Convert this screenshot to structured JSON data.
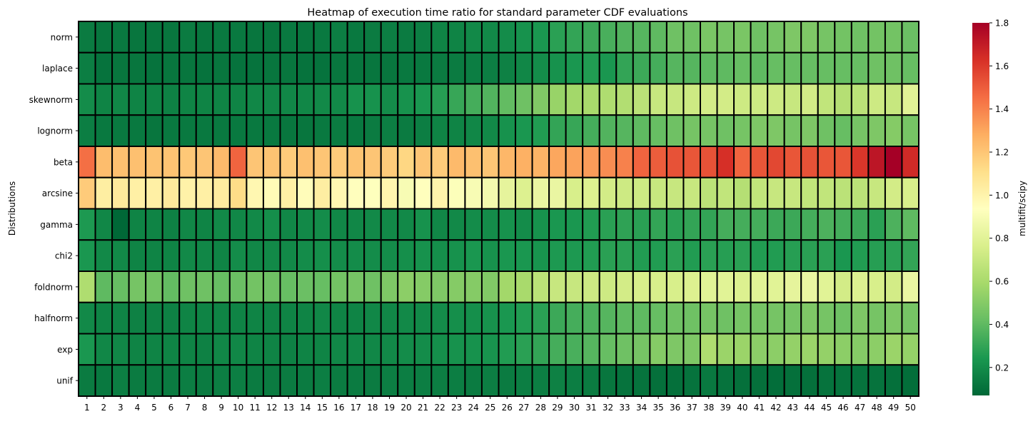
{
  "chart_data": {
    "type": "heatmap",
    "title": "Heatmap of execution time ratio for standard parameter CDF evaluations",
    "xlabel": "",
    "ylabel": "Distributions",
    "colorbar_label": "multifit/scipy",
    "colormap": "RdYlGn_r",
    "vmin": 0.07,
    "vmax": 1.8,
    "colorbar_ticks": [
      "0.2",
      "0.4",
      "0.6",
      "0.8",
      "1.0",
      "1.2",
      "1.4",
      "1.6",
      "1.8"
    ],
    "x_categories": [
      "1",
      "2",
      "3",
      "4",
      "5",
      "6",
      "7",
      "8",
      "9",
      "10",
      "11",
      "12",
      "13",
      "14",
      "15",
      "16",
      "17",
      "18",
      "19",
      "20",
      "21",
      "22",
      "23",
      "24",
      "25",
      "26",
      "27",
      "28",
      "29",
      "30",
      "31",
      "32",
      "33",
      "34",
      "35",
      "36",
      "37",
      "38",
      "39",
      "40",
      "41",
      "42",
      "43",
      "44",
      "45",
      "46",
      "47",
      "48",
      "49",
      "50"
    ],
    "y_categories": [
      "norm",
      "laplace",
      "skewnorm",
      "lognorm",
      "beta",
      "arcsine",
      "gamma",
      "chi2",
      "foldnorm",
      "halfnorm",
      "exp",
      "unif"
    ],
    "values": [
      [
        0.14,
        0.12,
        0.13,
        0.12,
        0.12,
        0.12,
        0.14,
        0.12,
        0.13,
        0.13,
        0.12,
        0.12,
        0.13,
        0.12,
        0.13,
        0.15,
        0.13,
        0.14,
        0.15,
        0.14,
        0.15,
        0.17,
        0.17,
        0.19,
        0.19,
        0.2,
        0.22,
        0.24,
        0.28,
        0.3,
        0.32,
        0.35,
        0.37,
        0.38,
        0.4,
        0.44,
        0.44,
        0.47,
        0.46,
        0.47,
        0.44,
        0.46,
        0.48,
        0.48,
        0.46,
        0.45,
        0.44,
        0.45,
        0.45,
        0.43
      ],
      [
        0.15,
        0.11,
        0.12,
        0.12,
        0.11,
        0.12,
        0.12,
        0.11,
        0.12,
        0.11,
        0.11,
        0.12,
        0.12,
        0.11,
        0.11,
        0.12,
        0.12,
        0.12,
        0.12,
        0.13,
        0.13,
        0.14,
        0.14,
        0.15,
        0.15,
        0.16,
        0.18,
        0.2,
        0.22,
        0.24,
        0.26,
        0.24,
        0.3,
        0.32,
        0.34,
        0.38,
        0.38,
        0.4,
        0.4,
        0.42,
        0.4,
        0.42,
        0.42,
        0.42,
        0.42,
        0.42,
        0.42,
        0.44,
        0.44,
        0.42
      ],
      [
        0.2,
        0.17,
        0.18,
        0.17,
        0.17,
        0.16,
        0.17,
        0.17,
        0.17,
        0.17,
        0.18,
        0.18,
        0.18,
        0.18,
        0.19,
        0.19,
        0.22,
        0.22,
        0.2,
        0.22,
        0.24,
        0.27,
        0.31,
        0.34,
        0.37,
        0.41,
        0.44,
        0.49,
        0.55,
        0.58,
        0.6,
        0.62,
        0.63,
        0.66,
        0.7,
        0.7,
        0.72,
        0.74,
        0.74,
        0.72,
        0.72,
        0.72,
        0.7,
        0.74,
        0.68,
        0.64,
        0.66,
        0.72,
        0.7,
        0.8
      ],
      [
        0.15,
        0.13,
        0.13,
        0.13,
        0.12,
        0.13,
        0.13,
        0.13,
        0.13,
        0.13,
        0.13,
        0.13,
        0.12,
        0.12,
        0.13,
        0.14,
        0.13,
        0.14,
        0.15,
        0.14,
        0.15,
        0.17,
        0.17,
        0.18,
        0.19,
        0.22,
        0.24,
        0.26,
        0.3,
        0.31,
        0.34,
        0.37,
        0.38,
        0.4,
        0.42,
        0.44,
        0.46,
        0.46,
        0.44,
        0.46,
        0.48,
        0.48,
        0.46,
        0.48,
        0.44,
        0.42,
        0.46,
        0.48,
        0.5,
        0.46
      ],
      [
        1.45,
        1.23,
        1.22,
        1.22,
        1.21,
        1.21,
        1.19,
        1.2,
        1.24,
        1.48,
        1.2,
        1.21,
        1.18,
        1.22,
        1.2,
        1.18,
        1.21,
        1.2,
        1.18,
        1.14,
        1.2,
        1.18,
        1.24,
        1.22,
        1.2,
        1.25,
        1.27,
        1.26,
        1.3,
        1.31,
        1.33,
        1.37,
        1.4,
        1.48,
        1.5,
        1.53,
        1.52,
        1.53,
        1.63,
        1.48,
        1.52,
        1.56,
        1.52,
        1.53,
        1.52,
        1.52,
        1.61,
        1.72,
        1.8,
        1.65
      ],
      [
        1.18,
        1.03,
        1.05,
        1.02,
        1.02,
        1.05,
        1.01,
        1.02,
        1.04,
        1.12,
        0.98,
        0.96,
        1.02,
        0.95,
        1.03,
        0.98,
        0.94,
        0.93,
        0.99,
        0.9,
        0.94,
        1.0,
        0.92,
        0.9,
        0.88,
        0.82,
        0.78,
        0.84,
        0.84,
        0.76,
        0.78,
        0.74,
        0.72,
        0.72,
        0.7,
        0.7,
        0.7,
        0.66,
        0.68,
        0.64,
        0.68,
        0.7,
        0.7,
        0.68,
        0.68,
        0.66,
        0.66,
        0.7,
        0.74,
        0.76
      ],
      [
        0.25,
        0.18,
        0.07,
        0.17,
        0.17,
        0.16,
        0.18,
        0.17,
        0.19,
        0.18,
        0.19,
        0.21,
        0.18,
        0.19,
        0.2,
        0.18,
        0.18,
        0.19,
        0.19,
        0.19,
        0.22,
        0.18,
        0.19,
        0.2,
        0.2,
        0.22,
        0.2,
        0.22,
        0.24,
        0.24,
        0.26,
        0.28,
        0.29,
        0.28,
        0.3,
        0.28,
        0.3,
        0.3,
        0.34,
        0.34,
        0.34,
        0.32,
        0.32,
        0.34,
        0.36,
        0.34,
        0.32,
        0.28,
        0.36,
        0.4
      ],
      [
        0.24,
        0.19,
        0.19,
        0.17,
        0.17,
        0.17,
        0.19,
        0.18,
        0.17,
        0.2,
        0.18,
        0.19,
        0.19,
        0.2,
        0.21,
        0.2,
        0.2,
        0.2,
        0.2,
        0.21,
        0.22,
        0.21,
        0.22,
        0.24,
        0.22,
        0.24,
        0.24,
        0.23,
        0.25,
        0.25,
        0.26,
        0.28,
        0.28,
        0.26,
        0.26,
        0.28,
        0.26,
        0.28,
        0.27,
        0.28,
        0.26,
        0.26,
        0.27,
        0.28,
        0.28,
        0.24,
        0.26,
        0.27,
        0.28,
        0.3
      ],
      [
        0.62,
        0.4,
        0.42,
        0.46,
        0.45,
        0.41,
        0.44,
        0.44,
        0.42,
        0.43,
        0.45,
        0.44,
        0.42,
        0.43,
        0.42,
        0.45,
        0.46,
        0.44,
        0.48,
        0.52,
        0.5,
        0.48,
        0.5,
        0.5,
        0.49,
        0.58,
        0.6,
        0.66,
        0.7,
        0.7,
        0.72,
        0.72,
        0.74,
        0.76,
        0.76,
        0.76,
        0.78,
        0.8,
        0.8,
        0.78,
        0.8,
        0.8,
        0.82,
        0.84,
        0.8,
        0.74,
        0.78,
        0.76,
        0.74,
        0.84
      ],
      [
        0.19,
        0.17,
        0.17,
        0.16,
        0.16,
        0.16,
        0.17,
        0.17,
        0.17,
        0.17,
        0.17,
        0.17,
        0.17,
        0.17,
        0.18,
        0.17,
        0.17,
        0.18,
        0.18,
        0.19,
        0.19,
        0.2,
        0.21,
        0.21,
        0.22,
        0.24,
        0.26,
        0.28,
        0.32,
        0.34,
        0.36,
        0.38,
        0.4,
        0.4,
        0.42,
        0.44,
        0.44,
        0.46,
        0.44,
        0.46,
        0.46,
        0.46,
        0.46,
        0.48,
        0.46,
        0.44,
        0.48,
        0.46,
        0.48,
        0.46
      ],
      [
        0.24,
        0.18,
        0.18,
        0.17,
        0.17,
        0.17,
        0.17,
        0.16,
        0.18,
        0.18,
        0.17,
        0.17,
        0.16,
        0.17,
        0.17,
        0.18,
        0.18,
        0.18,
        0.19,
        0.2,
        0.2,
        0.21,
        0.22,
        0.22,
        0.23,
        0.26,
        0.28,
        0.3,
        0.34,
        0.35,
        0.38,
        0.42,
        0.44,
        0.46,
        0.5,
        0.48,
        0.48,
        0.62,
        0.56,
        0.56,
        0.52,
        0.52,
        0.54,
        0.56,
        0.54,
        0.52,
        0.5,
        0.52,
        0.56,
        0.54
      ],
      [
        0.14,
        0.13,
        0.15,
        0.14,
        0.14,
        0.14,
        0.15,
        0.14,
        0.15,
        0.15,
        0.14,
        0.14,
        0.14,
        0.14,
        0.15,
        0.14,
        0.14,
        0.14,
        0.15,
        0.15,
        0.15,
        0.15,
        0.15,
        0.14,
        0.15,
        0.14,
        0.15,
        0.15,
        0.16,
        0.15,
        0.14,
        0.12,
        0.11,
        0.11,
        0.1,
        0.1,
        0.11,
        0.13,
        0.11,
        0.1,
        0.1,
        0.09,
        0.1,
        0.1,
        0.11,
        0.11,
        0.11,
        0.11,
        0.1,
        0.09
      ]
    ]
  }
}
